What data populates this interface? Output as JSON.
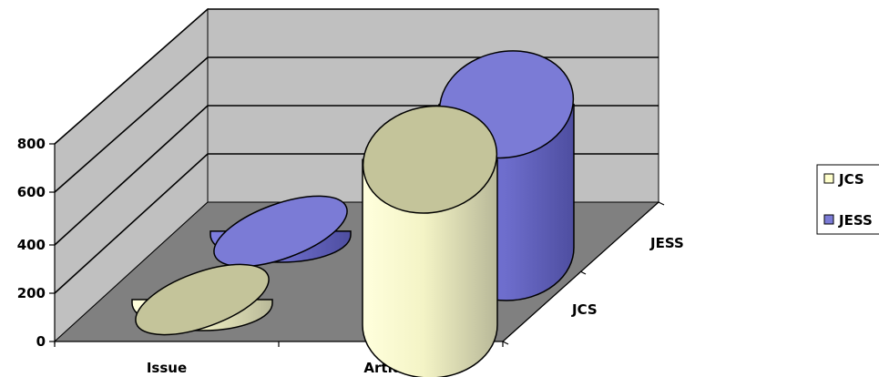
{
  "chart_data": {
    "type": "bar",
    "shape": "cylinder-3d",
    "categories": [
      "Issue",
      "Artides"
    ],
    "series": [
      {
        "name": "JCS",
        "values": [
          10,
          670
        ],
        "color": "#ffffcc"
      },
      {
        "name": "JESS",
        "values": [
          15,
          580
        ],
        "color": "#7b7bd6"
      }
    ],
    "depth_labels": [
      "JCS",
      "JESS"
    ],
    "y_ticks": [
      "0",
      "200",
      "400",
      "600",
      "800"
    ],
    "ylim": [
      0,
      800
    ],
    "grid": true,
    "legend": "right",
    "colors": {
      "back_wall": "#c0c0c0",
      "floor": "#808080",
      "cylinder_top": "#c4c49a"
    }
  }
}
